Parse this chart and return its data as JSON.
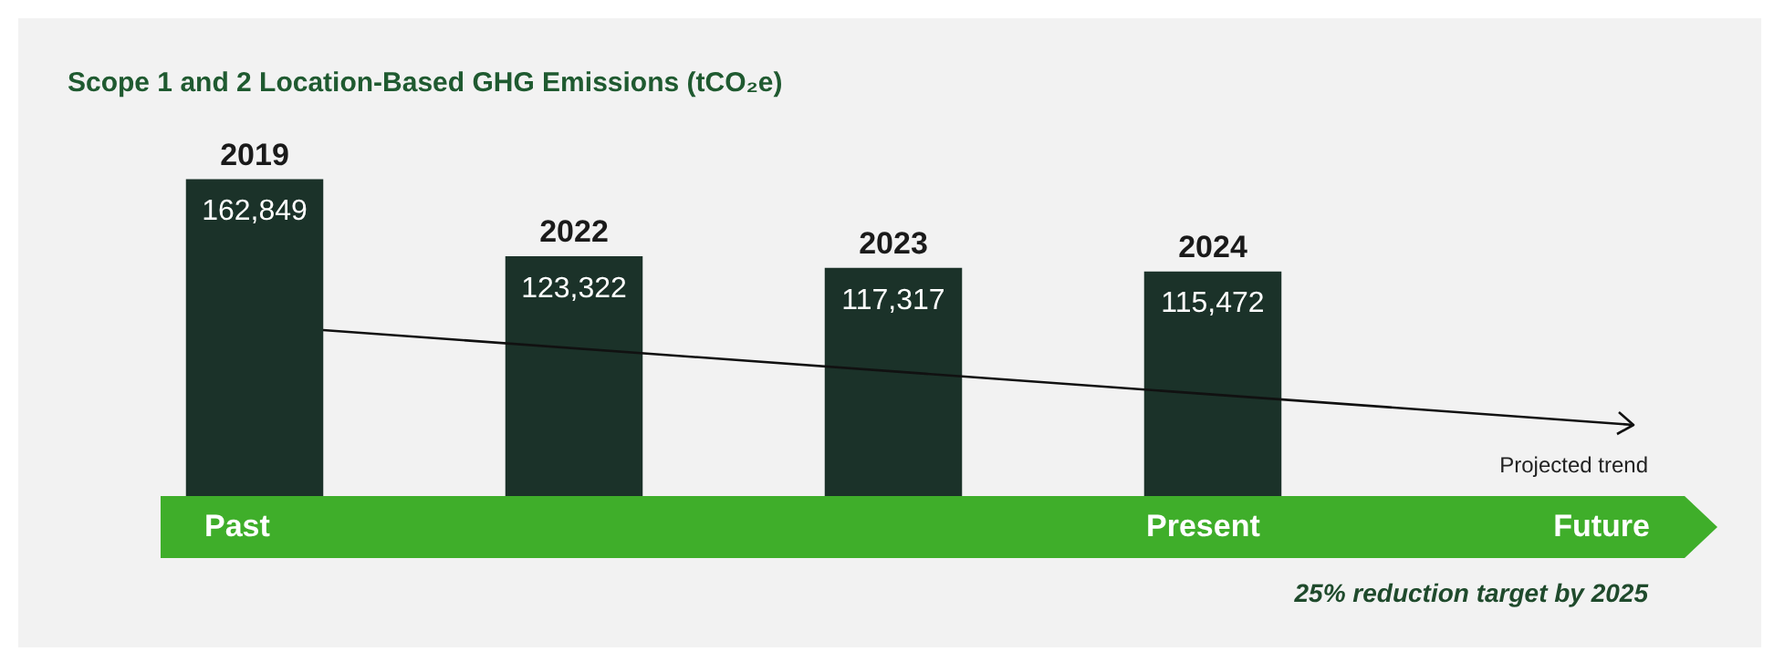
{
  "chart_data": {
    "type": "bar",
    "title": "Scope 1 and 2 Location-Based GHG Emissions (tCO₂e)",
    "categories": [
      "2019",
      "2022",
      "2023",
      "2024"
    ],
    "values": [
      162849,
      123322,
      117317,
      115472
    ],
    "color": "#1b3229",
    "value_labels": [
      "162,849",
      "123,322",
      "117,317",
      "115,472"
    ],
    "annotations": [
      "Projected trend",
      "Past",
      "Present",
      "Future",
      "25% reduction target by 2025"
    ]
  }
}
